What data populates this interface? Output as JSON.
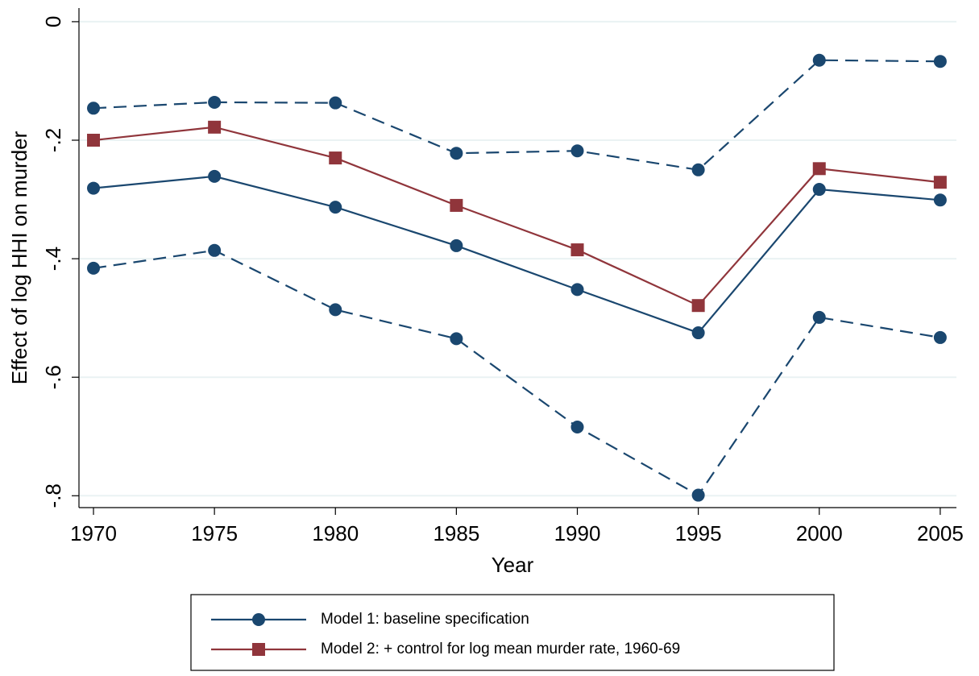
{
  "chart_data": {
    "type": "line",
    "x_label": "Year",
    "y_label": "Effect of log HHI on murder",
    "x": [
      1970,
      1975,
      1980,
      1985,
      1990,
      1995,
      2000,
      2005
    ],
    "series": [
      {
        "name": "Model 1: baseline specification",
        "color": "#1a476f",
        "marker": "circle",
        "dashed": false,
        "values": [
          -0.281,
          -0.261,
          -0.313,
          -0.378,
          -0.452,
          -0.525,
          -0.283,
          -0.301
        ]
      },
      {
        "name": "Model 2: + control for log mean murder rate, 1960-69",
        "color": "#90353b",
        "marker": "square",
        "dashed": false,
        "values": [
          -0.2,
          -0.178,
          -0.23,
          -0.31,
          -0.385,
          -0.479,
          -0.248,
          -0.271
        ]
      },
      {
        "color": "#1a476f",
        "marker": "circle",
        "dashed": true,
        "values": [
          -0.146,
          -0.136,
          -0.137,
          -0.222,
          -0.218,
          -0.25,
          -0.065,
          -0.067
        ]
      },
      {
        "color": "#1a476f",
        "marker": "circle",
        "dashed": true,
        "values": [
          -0.416,
          -0.386,
          -0.486,
          -0.535,
          -0.684,
          -0.799,
          -0.499,
          -0.533
        ]
      }
    ],
    "xlim": [
      1969.4,
      2005.67
    ],
    "ylim": [
      -0.82,
      0.023
    ],
    "xticks": [
      1970,
      1975,
      1980,
      1985,
      1990,
      1995,
      2000,
      2005
    ],
    "yticks": [
      0,
      {
        "value": -0.2,
        "label": "-.2"
      },
      {
        "value": -0.4,
        "label": "-.4"
      },
      {
        "value": -0.6,
        "label": "-.6"
      },
      {
        "value": -0.8,
        "label": "-.8"
      }
    ],
    "grid": true
  }
}
